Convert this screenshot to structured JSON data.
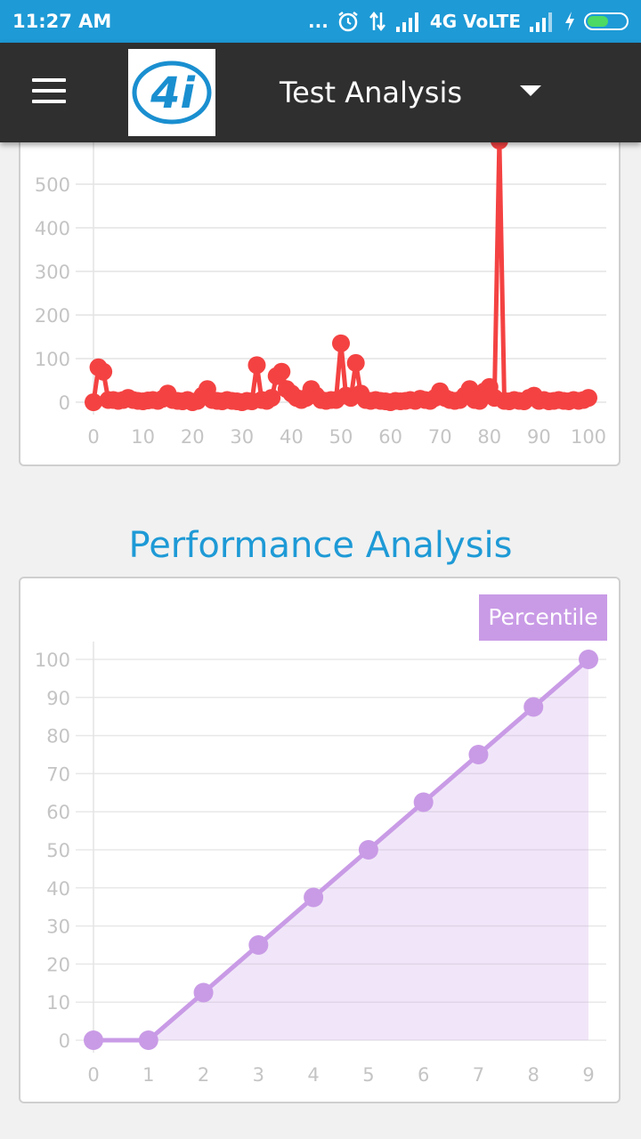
{
  "status_bar": {
    "time": "11:27 AM",
    "dots": "...",
    "network": "4G VoLTE",
    "alarm_icon": "alarm-clock-icon",
    "data_icon": "data-arrows-icon",
    "signal_icon": "signal-bars-icon",
    "charging_icon": "lightning-bolt-icon",
    "battery_icon": "battery-icon",
    "battery_level": 0.55
  },
  "app_bar": {
    "title": "Test Analysis",
    "menu_icon": "hamburger-menu-icon",
    "logo_text": "4i",
    "dropdown_icon": "caret-down-icon"
  },
  "section": {
    "performance_title": "Performance Analysis"
  },
  "chart_data": [
    {
      "type": "line",
      "title": "",
      "xlabel": "",
      "ylabel": "",
      "x_ticks": [
        0,
        10,
        20,
        30,
        40,
        50,
        60,
        70,
        80,
        90,
        100
      ],
      "y_ticks": [
        0,
        100,
        200,
        300,
        400,
        500
      ],
      "xlim": [
        0,
        100
      ],
      "ylim": [
        0,
        500
      ],
      "grid": true,
      "series": [
        {
          "color": "#f44242",
          "x": [
            0,
            1,
            2,
            3,
            4,
            5,
            6,
            7,
            8,
            9,
            10,
            11,
            12,
            13,
            14,
            15,
            16,
            17,
            18,
            19,
            20,
            21,
            22,
            23,
            24,
            25,
            26,
            27,
            28,
            29,
            30,
            31,
            32,
            33,
            34,
            35,
            36,
            37,
            38,
            39,
            40,
            41,
            42,
            43,
            44,
            45,
            46,
            47,
            48,
            49,
            50,
            51,
            52,
            53,
            54,
            55,
            56,
            57,
            58,
            59,
            60,
            61,
            62,
            63,
            64,
            65,
            66,
            67,
            68,
            69,
            70,
            71,
            72,
            73,
            74,
            75,
            76,
            77,
            78,
            79,
            80,
            81,
            82,
            83,
            84,
            85,
            86,
            87,
            88,
            89,
            90,
            91,
            92,
            93,
            94,
            95,
            96,
            97,
            98,
            99,
            100
          ],
          "values": [
            0,
            80,
            70,
            5,
            5,
            3,
            5,
            10,
            5,
            3,
            2,
            4,
            5,
            3,
            8,
            20,
            5,
            3,
            2,
            5,
            0,
            3,
            15,
            30,
            5,
            3,
            2,
            5,
            3,
            2,
            0,
            3,
            2,
            85,
            5,
            3,
            10,
            60,
            70,
            30,
            20,
            10,
            5,
            10,
            30,
            15,
            5,
            3,
            5,
            5,
            135,
            15,
            10,
            90,
            20,
            5,
            3,
            5,
            3,
            2,
            0,
            3,
            2,
            3,
            5,
            3,
            8,
            5,
            3,
            10,
            25,
            10,
            5,
            3,
            5,
            15,
            30,
            5,
            3,
            25,
            35,
            10,
            600,
            3,
            2,
            5,
            3,
            2,
            10,
            15,
            3,
            5,
            2,
            3,
            5,
            3,
            2,
            5,
            3,
            5,
            10
          ]
        }
      ]
    },
    {
      "type": "area",
      "title": "",
      "xlabel": "",
      "ylabel": "",
      "categories": [
        0,
        1,
        2,
        3,
        4,
        5,
        6,
        7,
        8,
        9
      ],
      "y_ticks": [
        0,
        10,
        20,
        30,
        40,
        50,
        60,
        70,
        80,
        90,
        100
      ],
      "ylim": [
        0,
        100
      ],
      "grid": true,
      "legend": "top-right",
      "series": [
        {
          "name": "Percentile",
          "color": "#c99be6",
          "values": [
            0,
            0,
            12.5,
            25,
            37.5,
            50,
            62.5,
            75,
            87.5,
            100
          ]
        }
      ]
    }
  ]
}
